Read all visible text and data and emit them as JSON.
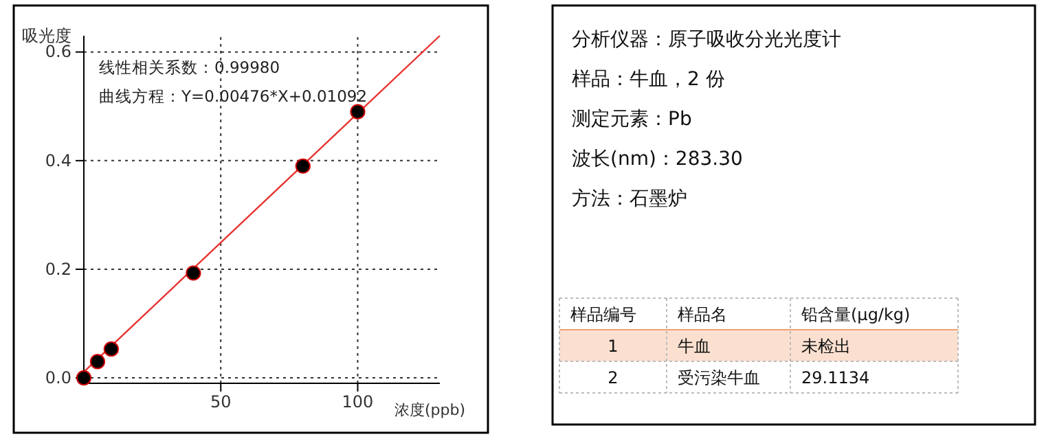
{
  "chart_data": [
    {
      "type": "scatter",
      "xlabel": "浓度(ppb)",
      "ylabel": "吸光度",
      "annotations": [
        "线性相关系数：0.99980",
        "曲线方程：Y=0.00476*X+0.01092"
      ],
      "xlim": [
        0,
        130
      ],
      "ylim": [
        -0.01,
        0.63
      ],
      "xticks": [
        50,
        100
      ],
      "yticks": [
        {
          "value": 0,
          "label": "0.0"
        },
        {
          "value": 0.2,
          "label": "0.2"
        },
        {
          "value": 0.4,
          "label": "0.4"
        },
        {
          "value": 0.6,
          "label": "0.6"
        }
      ],
      "grid": true,
      "series": [
        {
          "type": "line",
          "color": "#e8312f",
          "x": [
            0,
            130
          ],
          "values": [
            0.011,
            0.63
          ]
        },
        {
          "type": "scatter",
          "marker": "circle",
          "color": "#000000",
          "x": [
            0,
            5,
            10,
            40,
            80,
            100
          ],
          "values": [
            0.0,
            0.03,
            0.053,
            0.193,
            0.39,
            0.49
          ]
        }
      ]
    },
    {
      "type": "other",
      "annotations": [
        "分析仪器：原子吸收分光光度计",
        "样品：牛血，2 份",
        "测定元素：Pb",
        "波长(nm)：283.30",
        "方法：石墨炉",
        "样品编号",
        "样品名",
        "铅含量(μg/kg)",
        "1",
        "牛血",
        "未检出",
        "2",
        "受污染牛血",
        "29.1134"
      ]
    }
  ]
}
